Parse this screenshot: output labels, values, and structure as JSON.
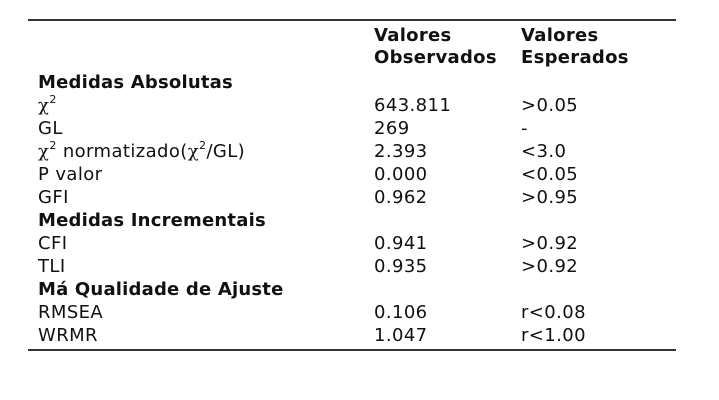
{
  "table": {
    "headers": {
      "col1": "",
      "col2": "Valores Observados",
      "col2_line1": "Valores",
      "col2_line2": "Observados",
      "col3": "Valores Esperados",
      "col3_line1": "Valores",
      "col3_line2": "Esperados"
    },
    "sections": [
      {
        "title": "Medidas Absolutas",
        "rows": [
          {
            "measure": "χ2",
            "observed": "643.811",
            "expected": ">0.05"
          },
          {
            "measure": "GL",
            "observed": "269",
            "expected": "-"
          },
          {
            "measure": "χ2 normatizado(χ2/GL)",
            "observed": "2.393",
            "expected": "<3.0"
          },
          {
            "measure": "P valor",
            "observed": "0.000",
            "expected": "<0.05"
          },
          {
            "measure": "GFI",
            "observed": "0.962",
            "expected": ">0.95"
          }
        ]
      },
      {
        "title": "Medidas Incrementais",
        "rows": [
          {
            "measure": "CFI",
            "observed": "0.941",
            "expected": ">0.92"
          },
          {
            "measure": "TLI",
            "observed": "0.935",
            "expected": ">0.92"
          }
        ]
      },
      {
        "title": "Má Qualidade de Ajuste",
        "rows": [
          {
            "measure": "RMSEA",
            "observed": "0.106",
            "expected": "r<0.08"
          },
          {
            "measure": "WRMR",
            "observed": "1.047",
            "expected": "r<1.00"
          }
        ]
      }
    ],
    "symbols": {
      "chi": "χ",
      "sup2": "2",
      "normatizado": " normatizado(",
      "slash_gl": "/GL)"
    }
  }
}
